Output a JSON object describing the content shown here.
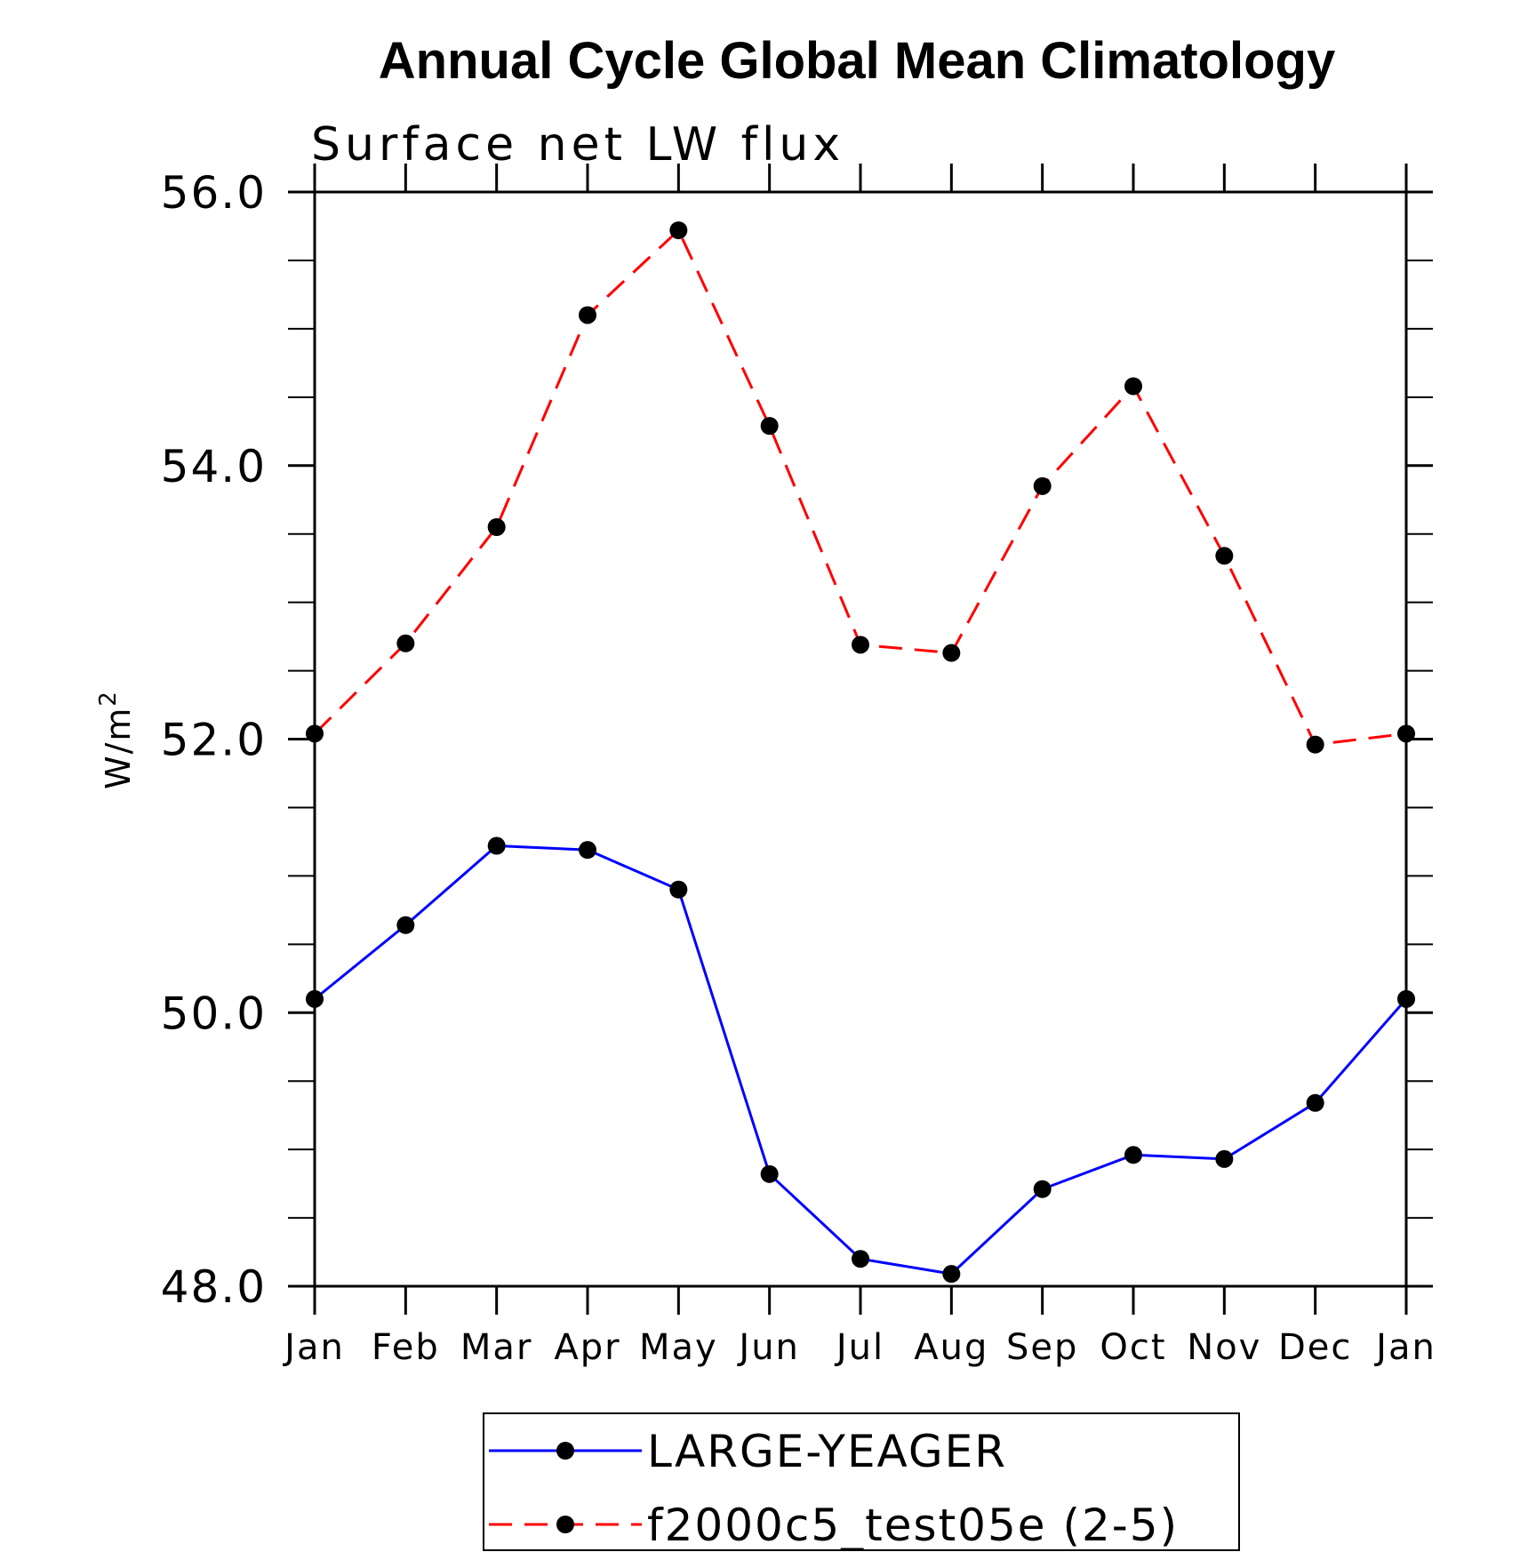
{
  "chart_data": {
    "type": "line",
    "title": "Annual Cycle Global Mean Climatology",
    "subtitle": "Surface net LW flux",
    "xlabel": "",
    "ylabel": "W/m",
    "ylabel_superscript": "2",
    "categories": [
      "Jan",
      "Feb",
      "Mar",
      "Apr",
      "May",
      "Jun",
      "Jul",
      "Aug",
      "Sep",
      "Oct",
      "Nov",
      "Dec",
      "Jan"
    ],
    "ylim": [
      48.0,
      56.0
    ],
    "y_major_ticks": [
      48.0,
      50.0,
      52.0,
      54.0,
      56.0
    ],
    "y_tick_labels": [
      "48.0",
      "50.0",
      "52.0",
      "54.0",
      "56.0"
    ],
    "y_minor_step": 0.5,
    "grid": false,
    "legend_placement": "bottom-center, below plot",
    "series": [
      {
        "name": "LARGE-YEAGER",
        "color": "#0000ff",
        "line_style": "solid",
        "marker": "filled-circle",
        "values": [
          50.1,
          50.64,
          51.22,
          51.19,
          50.9,
          48.82,
          48.2,
          48.09,
          48.71,
          48.96,
          48.93,
          49.34,
          50.1
        ]
      },
      {
        "name": "f2000c5_test05e (2-5)",
        "color": "#ff0000",
        "line_style": "dashed",
        "marker": "filled-circle",
        "values": [
          52.04,
          52.7,
          53.55,
          55.1,
          55.72,
          54.29,
          52.69,
          52.63,
          53.85,
          54.58,
          53.34,
          51.96,
          52.04
        ]
      }
    ]
  }
}
